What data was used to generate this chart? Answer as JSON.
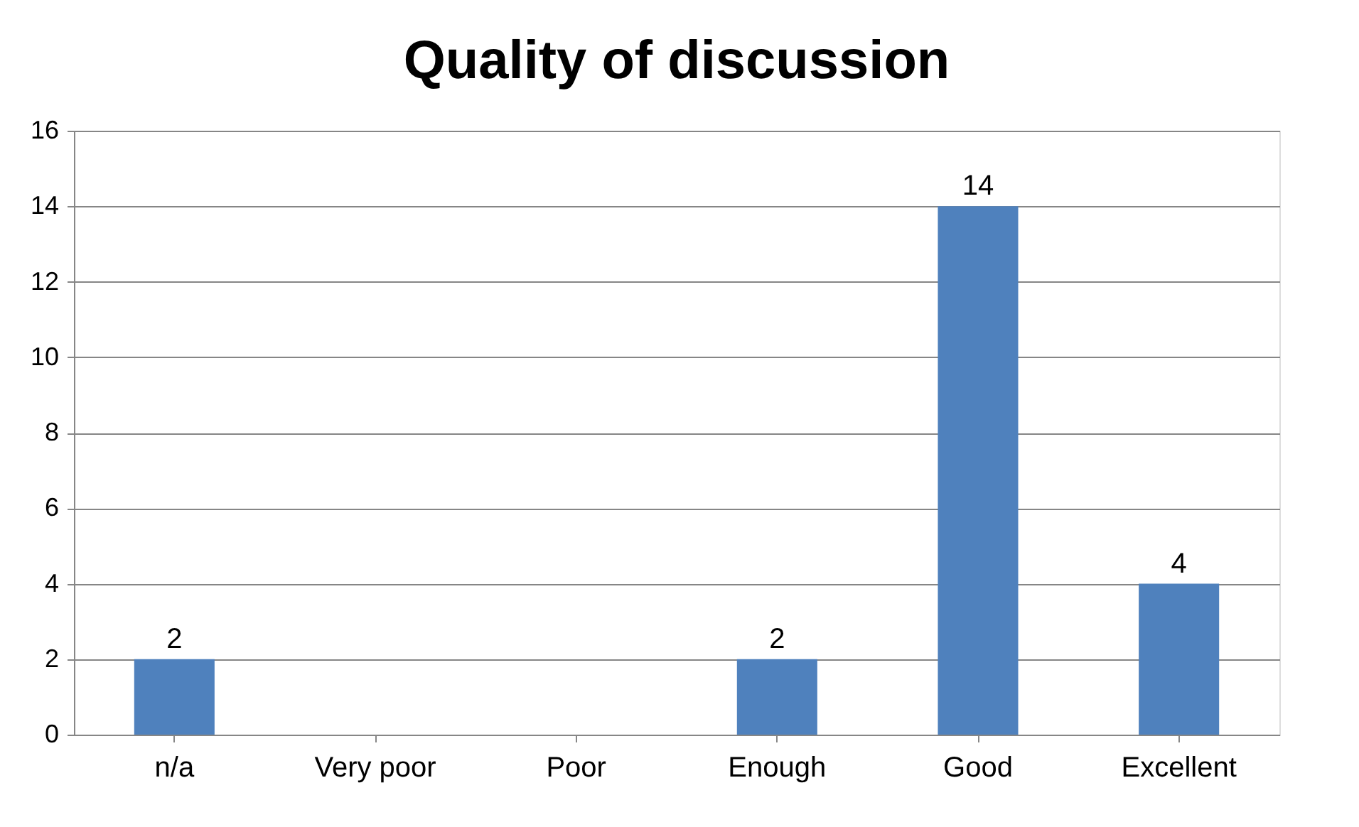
{
  "chart_data": {
    "type": "bar",
    "title": "Quality of discussion",
    "categories": [
      "n/a",
      "Very poor",
      "Poor",
      "Enough",
      "Good",
      "Excellent"
    ],
    "values": [
      2,
      0,
      0,
      2,
      14,
      4
    ],
    "value_labels": [
      "2",
      null,
      null,
      "2",
      "14",
      "4"
    ],
    "color": "#4f81bd",
    "ylim": [
      0,
      16
    ],
    "yticks": [
      0,
      2,
      4,
      6,
      8,
      10,
      12,
      14,
      16
    ],
    "grid": "y"
  }
}
